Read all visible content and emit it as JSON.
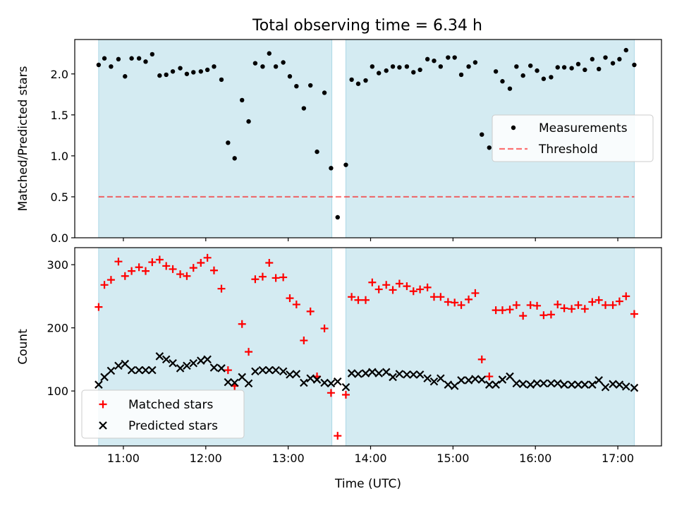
{
  "figure_title": "Total observing time = 6.34 h",
  "colors": {
    "shade": "#add8e6",
    "measurement": "#000000",
    "threshold": "#ff0000",
    "matched": "#ff0000",
    "predicted": "#000000"
  },
  "chart_data": [
    {
      "type": "scatter",
      "panel": "top",
      "title": "Total observing time = 6.34 h",
      "xlabel": "",
      "ylabel": "Matched/Predicted stars",
      "x_unit": "hours UTC",
      "xlim": [
        10.41,
        17.53
      ],
      "ylim": [
        0.0,
        2.42
      ],
      "yticks": [
        0.0,
        0.5,
        1.0,
        1.5,
        2.0
      ],
      "ytick_labels": [
        "0.0",
        "0.5",
        "1.0",
        "1.5",
        "2.0"
      ],
      "xticks": [
        11,
        12,
        13,
        14,
        15,
        16,
        17
      ],
      "shaded_spans": [
        [
          10.7,
          13.53
        ],
        [
          13.7,
          17.2
        ]
      ],
      "legend": {
        "position": "center-right",
        "entries": [
          "Measurements",
          "Threshold"
        ]
      },
      "series": [
        {
          "name": "Measurements",
          "marker": "dot",
          "x": [
            10.7,
            10.77,
            10.85,
            10.94,
            11.02,
            11.1,
            11.19,
            11.27,
            11.35,
            11.44,
            11.52,
            11.6,
            11.69,
            11.77,
            11.85,
            11.94,
            12.02,
            12.1,
            12.19,
            12.27,
            12.35,
            12.44,
            12.52,
            12.6,
            12.69,
            12.77,
            12.85,
            12.94,
            13.02,
            13.1,
            13.19,
            13.27,
            13.35,
            13.44,
            13.52,
            13.6,
            13.7,
            13.77,
            13.85,
            13.94,
            14.02,
            14.1,
            14.19,
            14.27,
            14.35,
            14.44,
            14.52,
            14.6,
            14.69,
            14.77,
            14.85,
            14.94,
            15.02,
            15.1,
            15.19,
            15.27,
            15.35,
            15.44,
            15.52,
            15.6,
            15.69,
            15.77,
            15.85,
            15.94,
            16.02,
            16.1,
            16.19,
            16.27,
            16.35,
            16.44,
            16.52,
            16.6,
            16.69,
            16.77,
            16.85,
            16.94,
            17.02,
            17.1,
            17.2
          ],
          "y": [
            2.11,
            2.19,
            2.09,
            2.18,
            1.97,
            2.19,
            2.19,
            2.15,
            2.24,
            1.98,
            1.99,
            2.03,
            2.07,
            2.0,
            2.02,
            2.03,
            2.05,
            2.09,
            1.93,
            1.16,
            0.97,
            1.68,
            1.42,
            2.13,
            2.09,
            2.25,
            2.09,
            2.14,
            1.97,
            1.85,
            1.58,
            1.86,
            1.05,
            1.77,
            0.85,
            0.25,
            0.89,
            1.93,
            1.88,
            1.92,
            2.09,
            2.01,
            2.04,
            2.09,
            2.08,
            2.09,
            2.02,
            2.05,
            2.18,
            2.16,
            2.09,
            2.2,
            2.2,
            1.99,
            2.09,
            2.14,
            1.26,
            1.1,
            2.03,
            1.91,
            1.82,
            2.09,
            1.98,
            2.1,
            2.04,
            1.94,
            1.96,
            2.08,
            2.08,
            2.07,
            2.12,
            2.05,
            2.18,
            2.06,
            2.2,
            2.13,
            2.18,
            2.29,
            2.11
          ]
        },
        {
          "name": "Threshold",
          "style": "dashed",
          "x": [
            10.7,
            17.2
          ],
          "y": [
            0.5,
            0.5
          ]
        }
      ]
    },
    {
      "type": "scatter",
      "panel": "bottom",
      "xlabel": "Time (UTC)",
      "ylabel": "Count",
      "x_unit": "hours UTC",
      "xlim": [
        10.41,
        17.53
      ],
      "ylim": [
        13,
        327
      ],
      "yticks": [
        100,
        200,
        300
      ],
      "ytick_labels": [
        "100",
        "200",
        "300"
      ],
      "xticks": [
        11,
        12,
        13,
        14,
        15,
        16,
        17
      ],
      "xtick_labels": [
        "11:00",
        "12:00",
        "13:00",
        "14:00",
        "15:00",
        "16:00",
        "17:00"
      ],
      "shaded_spans": [
        [
          10.7,
          13.53
        ],
        [
          13.7,
          17.2
        ]
      ],
      "legend": {
        "position": "lower-left",
        "entries": [
          "Matched stars",
          "Predicted stars"
        ]
      },
      "series": [
        {
          "name": "Matched stars",
          "marker": "plus",
          "x": [
            10.7,
            10.77,
            10.85,
            10.94,
            11.02,
            11.1,
            11.19,
            11.27,
            11.35,
            11.44,
            11.52,
            11.6,
            11.69,
            11.77,
            11.85,
            11.94,
            12.02,
            12.1,
            12.19,
            12.27,
            12.35,
            12.44,
            12.52,
            12.6,
            12.69,
            12.77,
            12.85,
            12.94,
            13.02,
            13.1,
            13.19,
            13.27,
            13.35,
            13.44,
            13.52,
            13.6,
            13.7,
            13.77,
            13.85,
            13.94,
            14.02,
            14.1,
            14.19,
            14.27,
            14.35,
            14.44,
            14.52,
            14.6,
            14.69,
            14.77,
            14.85,
            14.94,
            15.02,
            15.1,
            15.19,
            15.27,
            15.35,
            15.44,
            15.52,
            15.6,
            15.69,
            15.77,
            15.85,
            15.94,
            16.02,
            16.1,
            16.19,
            16.27,
            16.35,
            16.44,
            16.52,
            16.6,
            16.69,
            16.77,
            16.85,
            16.94,
            17.02,
            17.1,
            17.2
          ],
          "y": [
            233,
            268,
            276,
            305,
            282,
            290,
            296,
            290,
            304,
            308,
            298,
            293,
            285,
            282,
            295,
            303,
            311,
            291,
            262,
            133,
            108,
            206,
            162,
            277,
            281,
            303,
            279,
            280,
            247,
            237,
            180,
            226,
            123,
            199,
            97,
            29,
            94,
            249,
            244,
            244,
            272,
            261,
            268,
            260,
            270,
            266,
            258,
            261,
            264,
            249,
            249,
            241,
            240,
            236,
            245,
            255,
            150,
            123,
            228,
            228,
            229,
            236,
            219,
            236,
            235,
            220,
            221,
            237,
            231,
            230,
            236,
            230,
            241,
            244,
            236,
            236,
            242,
            250,
            222
          ]
        },
        {
          "name": "Predicted stars",
          "marker": "x",
          "x": [
            10.7,
            10.77,
            10.85,
            10.94,
            11.02,
            11.1,
            11.19,
            11.27,
            11.35,
            11.44,
            11.52,
            11.6,
            11.69,
            11.77,
            11.85,
            11.94,
            12.02,
            12.1,
            12.19,
            12.27,
            12.35,
            12.44,
            12.52,
            12.6,
            12.69,
            12.77,
            12.85,
            12.94,
            13.02,
            13.1,
            13.19,
            13.27,
            13.35,
            13.44,
            13.52,
            13.6,
            13.7,
            13.77,
            13.85,
            13.94,
            14.02,
            14.1,
            14.19,
            14.27,
            14.35,
            14.44,
            14.52,
            14.6,
            14.69,
            14.77,
            14.85,
            14.94,
            15.02,
            15.1,
            15.19,
            15.27,
            15.35,
            15.44,
            15.52,
            15.6,
            15.69,
            15.77,
            15.85,
            15.94,
            16.02,
            16.1,
            16.19,
            16.27,
            16.35,
            16.44,
            16.52,
            16.6,
            16.69,
            16.77,
            16.85,
            16.94,
            17.02,
            17.1,
            17.2
          ],
          "y": [
            110,
            122,
            132,
            140,
            143,
            133,
            133,
            133,
            133,
            155,
            150,
            144,
            136,
            140,
            144,
            148,
            150,
            137,
            136,
            114,
            113,
            122,
            112,
            131,
            133,
            133,
            133,
            131,
            126,
            127,
            113,
            120,
            118,
            113,
            112,
            115,
            106,
            128,
            127,
            128,
            130,
            128,
            130,
            122,
            127,
            126,
            126,
            126,
            120,
            115,
            120,
            110,
            108,
            117,
            117,
            119,
            118,
            110,
            110,
            118,
            123,
            112,
            111,
            110,
            112,
            112,
            112,
            112,
            110,
            110,
            110,
            110,
            110,
            117,
            106,
            111,
            110,
            107,
            105
          ]
        }
      ]
    }
  ]
}
